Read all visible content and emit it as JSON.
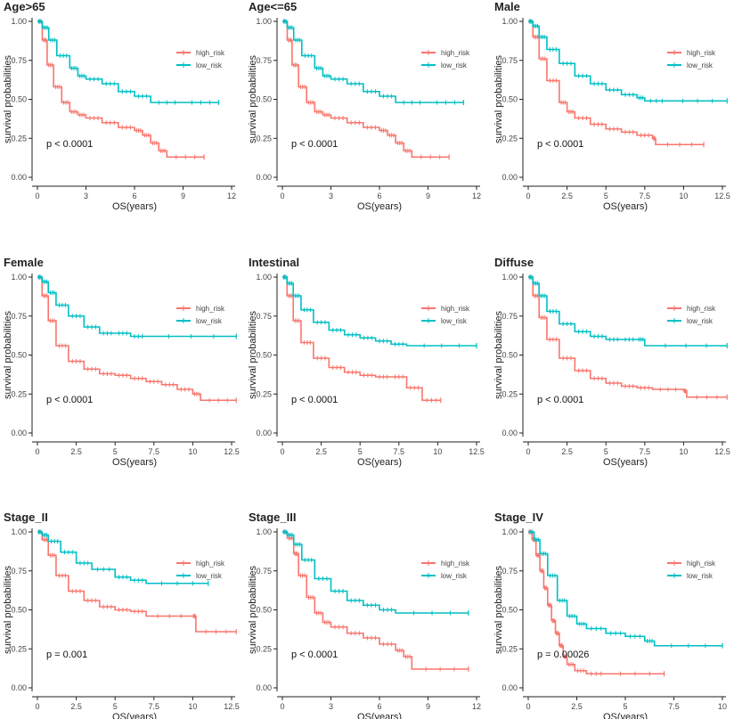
{
  "colors": {
    "high_risk": "#F8766D",
    "low_risk": "#00BFC4"
  },
  "chart_data": [
    {
      "type": "line",
      "title": "Age>65",
      "xlabel": "OS(years)",
      "ylabel": "survival probabilities",
      "xlim": [
        0,
        12
      ],
      "xticks": [
        0,
        3,
        6,
        9,
        12
      ],
      "ylim": [
        0,
        1
      ],
      "yticks": [
        "0.00",
        "0.25",
        "0.50",
        "0.75",
        "1.00"
      ],
      "pvalue": "p < 0.0001",
      "legend": [
        "high_risk",
        "low_risk"
      ],
      "series": [
        {
          "name": "high_risk",
          "x": [
            0,
            0.3,
            0.6,
            1.0,
            1.5,
            2.0,
            2.5,
            3.0,
            4.0,
            5.0,
            6.0,
            6.5,
            7.0,
            7.5,
            8.0,
            10.3
          ],
          "y": [
            1.0,
            0.88,
            0.72,
            0.58,
            0.48,
            0.42,
            0.4,
            0.38,
            0.35,
            0.32,
            0.3,
            0.27,
            0.22,
            0.17,
            0.13,
            0.13
          ]
        },
        {
          "name": "low_risk",
          "x": [
            0,
            0.3,
            0.7,
            1.2,
            2.0,
            2.5,
            3.0,
            4.0,
            5.0,
            6.0,
            7.0,
            9.0,
            11.2
          ],
          "y": [
            1.0,
            0.96,
            0.88,
            0.78,
            0.7,
            0.65,
            0.63,
            0.6,
            0.55,
            0.52,
            0.48,
            0.48,
            0.48
          ]
        }
      ]
    },
    {
      "type": "line",
      "title": "Age<=65",
      "xlabel": "OS(years)",
      "ylabel": "survival probabilities",
      "xlim": [
        0,
        12
      ],
      "xticks": [
        0,
        3,
        6,
        9,
        12
      ],
      "ylim": [
        0,
        1
      ],
      "yticks": [
        "0.00",
        "0.25",
        "0.50",
        "0.75",
        "1.00"
      ],
      "pvalue": "p < 0.0001",
      "legend": [
        "high_risk",
        "low_risk"
      ],
      "series": [
        {
          "name": "high_risk",
          "x": [
            0,
            0.3,
            0.6,
            1.0,
            1.5,
            2.0,
            2.5,
            3.0,
            4.0,
            5.0,
            6.0,
            6.5,
            7.0,
            7.5,
            8.0,
            10.3
          ],
          "y": [
            1.0,
            0.88,
            0.72,
            0.58,
            0.48,
            0.42,
            0.4,
            0.38,
            0.35,
            0.32,
            0.3,
            0.27,
            0.22,
            0.17,
            0.13,
            0.13
          ]
        },
        {
          "name": "low_risk",
          "x": [
            0,
            0.3,
            0.7,
            1.2,
            2.0,
            2.5,
            3.0,
            4.0,
            5.0,
            6.0,
            7.0,
            9.0,
            11.2
          ],
          "y": [
            1.0,
            0.96,
            0.88,
            0.78,
            0.7,
            0.65,
            0.63,
            0.6,
            0.55,
            0.52,
            0.48,
            0.48,
            0.48
          ]
        }
      ]
    },
    {
      "type": "line",
      "title": "Male",
      "xlabel": "OS(years)",
      "ylabel": "survival probabilities",
      "xlim": [
        0,
        12.5
      ],
      "xticks": [
        0,
        2.5,
        5,
        7.5,
        10,
        12.5
      ],
      "ylim": [
        0,
        1
      ],
      "yticks": [
        "0.00",
        "0.25",
        "0.50",
        "0.75",
        "1.00"
      ],
      "pvalue": "p < 0.0001",
      "legend": [
        "high_risk",
        "low_risk"
      ],
      "series": [
        {
          "name": "high_risk",
          "x": [
            0,
            0.3,
            0.7,
            1.2,
            2.0,
            2.5,
            3.0,
            4.0,
            5.0,
            6.0,
            7.0,
            8.0,
            8.2,
            11.3
          ],
          "y": [
            1.0,
            0.9,
            0.76,
            0.62,
            0.48,
            0.42,
            0.38,
            0.34,
            0.31,
            0.29,
            0.27,
            0.25,
            0.21,
            0.21
          ]
        },
        {
          "name": "low_risk",
          "x": [
            0,
            0.3,
            0.7,
            1.2,
            2.0,
            3.0,
            4.0,
            5.0,
            6.0,
            7.0,
            7.5,
            9.0,
            12.8
          ],
          "y": [
            1.0,
            0.97,
            0.9,
            0.82,
            0.73,
            0.65,
            0.6,
            0.56,
            0.53,
            0.51,
            0.49,
            0.49,
            0.49
          ]
        }
      ]
    },
    {
      "type": "line",
      "title": "Female",
      "xlabel": "OS(years)",
      "ylabel": "survival probabilities",
      "xlim": [
        0,
        12.5
      ],
      "xticks": [
        0,
        2.5,
        5,
        7.5,
        10,
        12.5
      ],
      "ylim": [
        0,
        1
      ],
      "yticks": [
        "0.00",
        "0.25",
        "0.50",
        "0.75",
        "1.00"
      ],
      "pvalue": "p < 0.0001",
      "legend": [
        "high_risk",
        "low_risk"
      ],
      "series": [
        {
          "name": "high_risk",
          "x": [
            0,
            0.3,
            0.7,
            1.2,
            2.0,
            3.0,
            4.0,
            5.0,
            6.0,
            7.0,
            8.0,
            9.0,
            10.0,
            10.5,
            12.8
          ],
          "y": [
            1.0,
            0.88,
            0.72,
            0.56,
            0.46,
            0.41,
            0.38,
            0.37,
            0.35,
            0.33,
            0.31,
            0.28,
            0.25,
            0.21,
            0.21
          ]
        },
        {
          "name": "low_risk",
          "x": [
            0,
            0.3,
            0.7,
            1.2,
            2.0,
            3.0,
            4.0,
            5.0,
            6.0,
            7.0,
            12.8
          ],
          "y": [
            1.0,
            0.97,
            0.9,
            0.82,
            0.75,
            0.68,
            0.64,
            0.64,
            0.62,
            0.62,
            0.62
          ]
        }
      ]
    },
    {
      "type": "line",
      "title": "Intestinal",
      "xlabel": "OS(years)",
      "ylabel": "survival probabilities",
      "xlim": [
        0,
        12.5
      ],
      "xticks": [
        0,
        2.5,
        5,
        7.5,
        10,
        12.5
      ],
      "ylim": [
        0,
        1
      ],
      "yticks": [
        "0.00",
        "0.25",
        "0.50",
        "0.75",
        "1.00"
      ],
      "pvalue": "p < 0.0001",
      "legend": [
        "high_risk",
        "low_risk"
      ],
      "series": [
        {
          "name": "high_risk",
          "x": [
            0,
            0.3,
            0.7,
            1.2,
            2.0,
            3.0,
            4.0,
            5.0,
            6.0,
            7.0,
            8.0,
            9.0,
            10.2
          ],
          "y": [
            1.0,
            0.88,
            0.72,
            0.58,
            0.48,
            0.42,
            0.39,
            0.37,
            0.36,
            0.36,
            0.29,
            0.21,
            0.21
          ]
        },
        {
          "name": "low_risk",
          "x": [
            0,
            0.3,
            0.7,
            1.2,
            2.0,
            3.0,
            4.0,
            5.0,
            6.0,
            7.0,
            8.0,
            12.5
          ],
          "y": [
            1.0,
            0.96,
            0.88,
            0.79,
            0.71,
            0.66,
            0.63,
            0.61,
            0.59,
            0.57,
            0.56,
            0.56
          ]
        }
      ]
    },
    {
      "type": "line",
      "title": "Diffuse",
      "xlabel": "OS(years)",
      "ylabel": "survival probabilities",
      "xlim": [
        0,
        12.5
      ],
      "xticks": [
        0,
        2.5,
        5,
        7.5,
        10,
        12.5
      ],
      "ylim": [
        0,
        1
      ],
      "yticks": [
        "0.00",
        "0.25",
        "0.50",
        "0.75",
        "1.00"
      ],
      "pvalue": "p < 0.0001",
      "legend": [
        "high_risk",
        "low_risk"
      ],
      "series": [
        {
          "name": "high_risk",
          "x": [
            0,
            0.3,
            0.7,
            1.2,
            2.0,
            3.0,
            4.0,
            5.0,
            6.0,
            7.0,
            8.0,
            10.0,
            10.2,
            12.8
          ],
          "y": [
            1.0,
            0.88,
            0.74,
            0.6,
            0.48,
            0.4,
            0.35,
            0.32,
            0.3,
            0.29,
            0.28,
            0.27,
            0.23,
            0.23
          ]
        },
        {
          "name": "low_risk",
          "x": [
            0,
            0.3,
            0.7,
            1.2,
            2.0,
            3.0,
            4.0,
            5.0,
            6.0,
            7.0,
            7.5,
            12.8
          ],
          "y": [
            1.0,
            0.96,
            0.88,
            0.78,
            0.7,
            0.65,
            0.62,
            0.6,
            0.6,
            0.6,
            0.56,
            0.56
          ]
        }
      ]
    },
    {
      "type": "line",
      "title": "Stage_II",
      "xlabel": "OS(years)",
      "ylabel": "survival probabilities",
      "xlim": [
        0,
        12.5
      ],
      "xticks": [
        0,
        2.5,
        5,
        7.5,
        10,
        12.5
      ],
      "ylim": [
        0,
        1
      ],
      "yticks": [
        "0.00",
        "0.25",
        "0.50",
        "0.75",
        "1.00"
      ],
      "pvalue": "p = 0.001",
      "legend": [
        "high_risk",
        "low_risk"
      ],
      "series": [
        {
          "name": "high_risk",
          "x": [
            0,
            0.3,
            0.7,
            1.2,
            2.0,
            3.0,
            4.0,
            5.0,
            6.0,
            7.0,
            10.0,
            10.2,
            12.8
          ],
          "y": [
            1.0,
            0.95,
            0.85,
            0.72,
            0.62,
            0.56,
            0.52,
            0.5,
            0.49,
            0.46,
            0.46,
            0.36,
            0.36
          ]
        },
        {
          "name": "low_risk",
          "x": [
            0,
            0.3,
            0.7,
            1.5,
            2.5,
            3.5,
            5.0,
            6.0,
            7.0,
            11.0
          ],
          "y": [
            1.0,
            0.98,
            0.94,
            0.87,
            0.8,
            0.76,
            0.71,
            0.69,
            0.67,
            0.67
          ]
        }
      ]
    },
    {
      "type": "line",
      "title": "Stage_III",
      "xlabel": "OS(years)",
      "ylabel": "survival probabilities",
      "xlim": [
        0,
        12
      ],
      "xticks": [
        0,
        3,
        6,
        9,
        12
      ],
      "ylim": [
        0,
        1
      ],
      "yticks": [
        "0.00",
        "0.25",
        "0.50",
        "0.75",
        "1.00"
      ],
      "pvalue": "p < 0.0001",
      "legend": [
        "high_risk",
        "low_risk"
      ],
      "series": [
        {
          "name": "high_risk",
          "x": [
            0,
            0.3,
            0.7,
            1.0,
            1.5,
            2.0,
            2.5,
            3.0,
            4.0,
            5.0,
            6.0,
            7.0,
            7.5,
            8.0,
            11.5
          ],
          "y": [
            1.0,
            0.96,
            0.86,
            0.72,
            0.58,
            0.48,
            0.42,
            0.39,
            0.35,
            0.32,
            0.28,
            0.24,
            0.2,
            0.12,
            0.12
          ]
        },
        {
          "name": "low_risk",
          "x": [
            0,
            0.3,
            0.7,
            1.2,
            2.0,
            3.0,
            4.0,
            5.0,
            6.0,
            7.0,
            11.5
          ],
          "y": [
            1.0,
            0.98,
            0.92,
            0.82,
            0.7,
            0.62,
            0.56,
            0.53,
            0.5,
            0.48,
            0.48
          ]
        }
      ]
    },
    {
      "type": "line",
      "title": "Stage_IV",
      "xlabel": "OS(years)",
      "ylabel": "survival probabilities",
      "xlim": [
        0,
        10
      ],
      "xticks": [
        0,
        2.5,
        5,
        7.5,
        10
      ],
      "ylim": [
        0,
        1
      ],
      "yticks": [
        "0.00",
        "0.25",
        "0.50",
        "0.75",
        "1.00"
      ],
      "pvalue": "p = 0.00026",
      "legend": [
        "high_risk",
        "low_risk"
      ],
      "series": [
        {
          "name": "high_risk",
          "x": [
            0,
            0.2,
            0.4,
            0.6,
            0.8,
            1.0,
            1.2,
            1.4,
            1.6,
            1.8,
            2.0,
            2.4,
            3.0,
            4.0,
            7.0
          ],
          "y": [
            1.0,
            0.95,
            0.85,
            0.75,
            0.64,
            0.53,
            0.43,
            0.35,
            0.27,
            0.2,
            0.15,
            0.11,
            0.09,
            0.09,
            0.09
          ]
        },
        {
          "name": "low_risk",
          "x": [
            0,
            0.3,
            0.6,
            1.0,
            1.5,
            2.0,
            2.5,
            3.0,
            4.0,
            5.0,
            6.0,
            6.5,
            10.0
          ],
          "y": [
            1.0,
            0.95,
            0.86,
            0.72,
            0.56,
            0.46,
            0.41,
            0.38,
            0.35,
            0.33,
            0.3,
            0.27,
            0.27
          ]
        }
      ]
    }
  ]
}
